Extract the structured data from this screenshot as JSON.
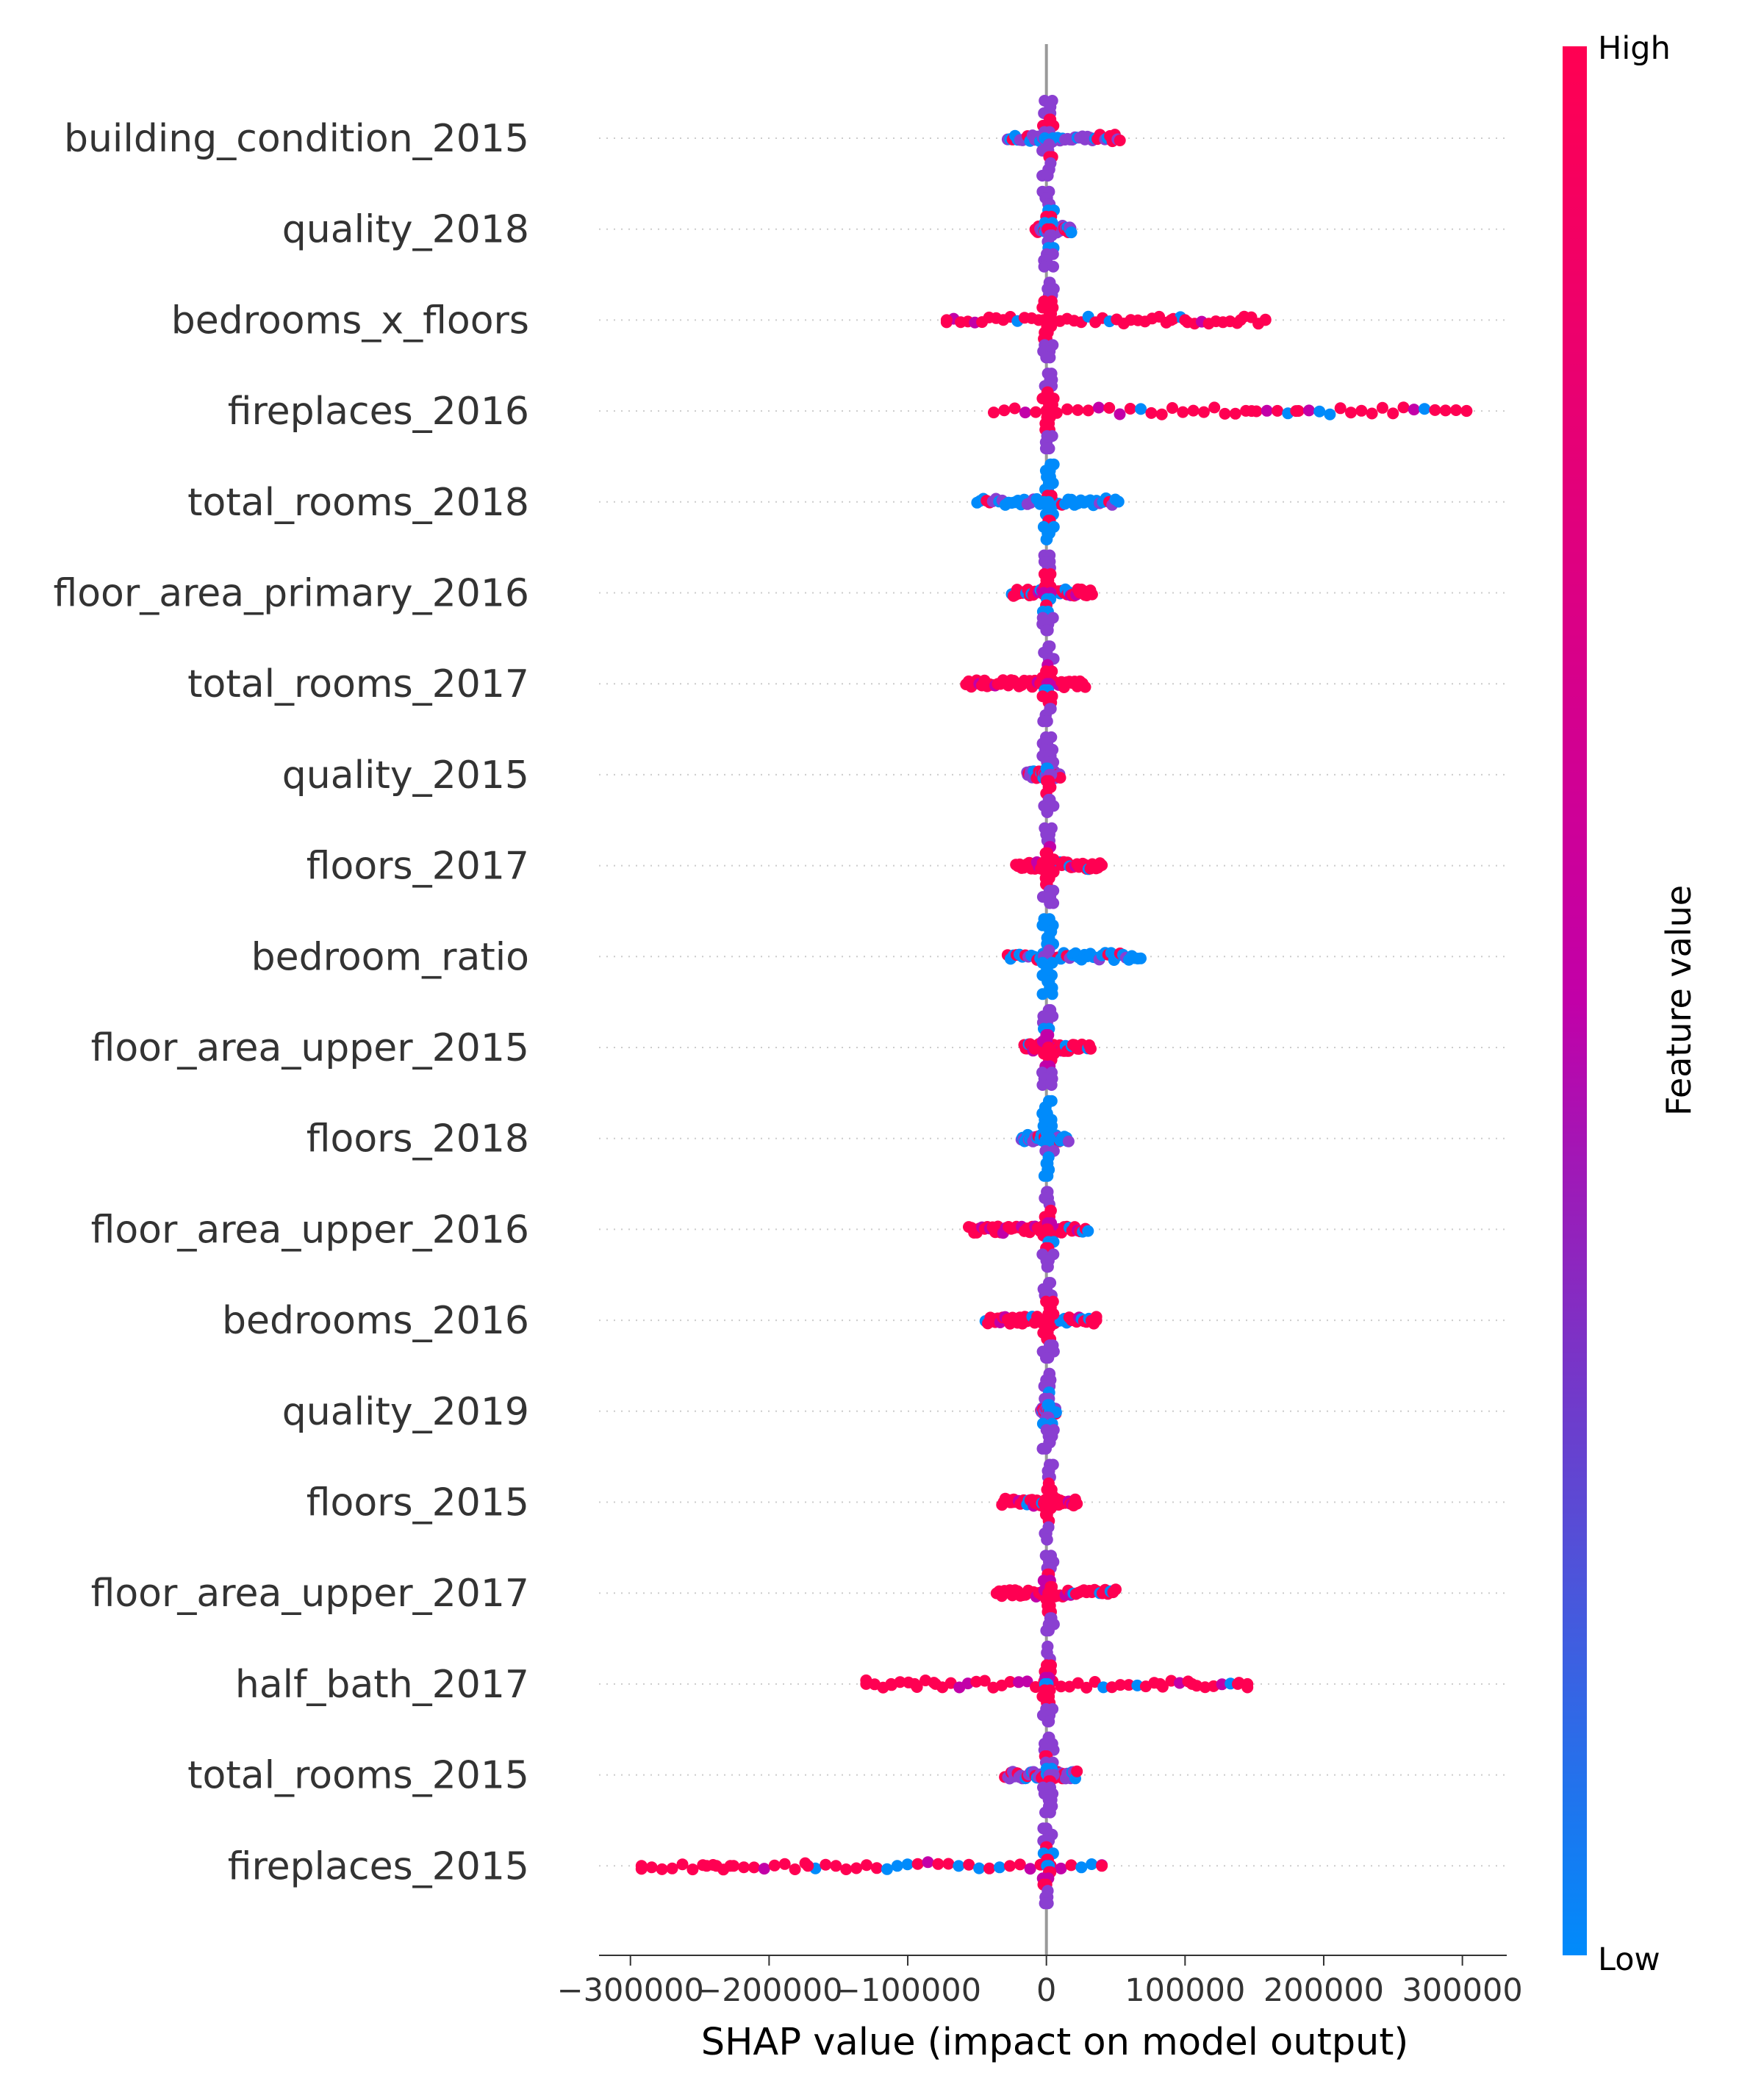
{
  "chart_data": {
    "type": "scatter",
    "subtype": "shap-beeswarm",
    "title": "",
    "xlabel": "SHAP value (impact on model output)",
    "xlim": [
      -320000,
      332000
    ],
    "xticks": [
      -300000,
      -200000,
      -100000,
      0,
      100000,
      200000,
      300000
    ],
    "xtick_labels": [
      "−300000",
      "−200000",
      "−100000",
      "0",
      "100000",
      "200000",
      "300000"
    ],
    "grid": "dotted-horizontal",
    "colorbar": {
      "title": "Feature value",
      "high_label": "High",
      "low_label": "Low",
      "high_color": "#ff0052",
      "mid_color": "#c200a8",
      "low_color": "#008bfb"
    },
    "features": [
      {
        "name": "building_condition_2015",
        "min": -28000,
        "max": 53000,
        "dominant": "mix"
      },
      {
        "name": "quality_2018",
        "min": -8000,
        "max": 18000,
        "dominant": "mix"
      },
      {
        "name": "bedrooms_x_floors",
        "min": -72000,
        "max": 158000,
        "dominant": "high",
        "outliers": [
          -72000,
          90000,
          100000,
          140000,
          158000
        ]
      },
      {
        "name": "fireplaces_2016",
        "min": -38000,
        "max": 303000,
        "dominant": "high",
        "outliers": [
          148000,
          180000,
          303000
        ]
      },
      {
        "name": "total_rooms_2018",
        "min": -50000,
        "max": 52000,
        "dominant": "low"
      },
      {
        "name": "floor_area_primary_2016",
        "min": -25000,
        "max": 33000,
        "dominant": "high"
      },
      {
        "name": "total_rooms_2017",
        "min": -58000,
        "max": 28000,
        "dominant": "high"
      },
      {
        "name": "quality_2015",
        "min": -14000,
        "max": 10000,
        "dominant": "mix"
      },
      {
        "name": "floors_2017",
        "min": -22000,
        "max": 40000,
        "dominant": "high"
      },
      {
        "name": "bedroom_ratio",
        "min": -28000,
        "max": 68000,
        "dominant": "low"
      },
      {
        "name": "floor_area_upper_2015",
        "min": -16000,
        "max": 32000,
        "dominant": "high"
      },
      {
        "name": "floors_2018",
        "min": -18000,
        "max": 16000,
        "dominant": "low"
      },
      {
        "name": "floor_area_upper_2016",
        "min": -56000,
        "max": 30000,
        "dominant": "high"
      },
      {
        "name": "bedrooms_2016",
        "min": -44000,
        "max": 36000,
        "dominant": "high",
        "outliers": [
          36000
        ]
      },
      {
        "name": "quality_2019",
        "min": -4000,
        "max": 7000,
        "dominant": "mix"
      },
      {
        "name": "floors_2015",
        "min": -32000,
        "max": 22000,
        "dominant": "high"
      },
      {
        "name": "floor_area_upper_2017",
        "min": -36000,
        "max": 50000,
        "dominant": "high"
      },
      {
        "name": "half_bath_2017",
        "min": -130000,
        "max": 145000,
        "dominant": "high",
        "outliers": [
          -130000,
          -112000,
          -95000,
          -80000,
          82000,
          105000,
          138000,
          145000
        ]
      },
      {
        "name": "total_rooms_2015",
        "min": -30000,
        "max": 22000,
        "dominant": "mix"
      },
      {
        "name": "fireplaces_2015",
        "min": -292000,
        "max": 40000,
        "dominant": "high",
        "outliers": [
          -292000,
          -245000,
          -238000,
          -228000,
          -172000,
          40000
        ]
      }
    ]
  }
}
